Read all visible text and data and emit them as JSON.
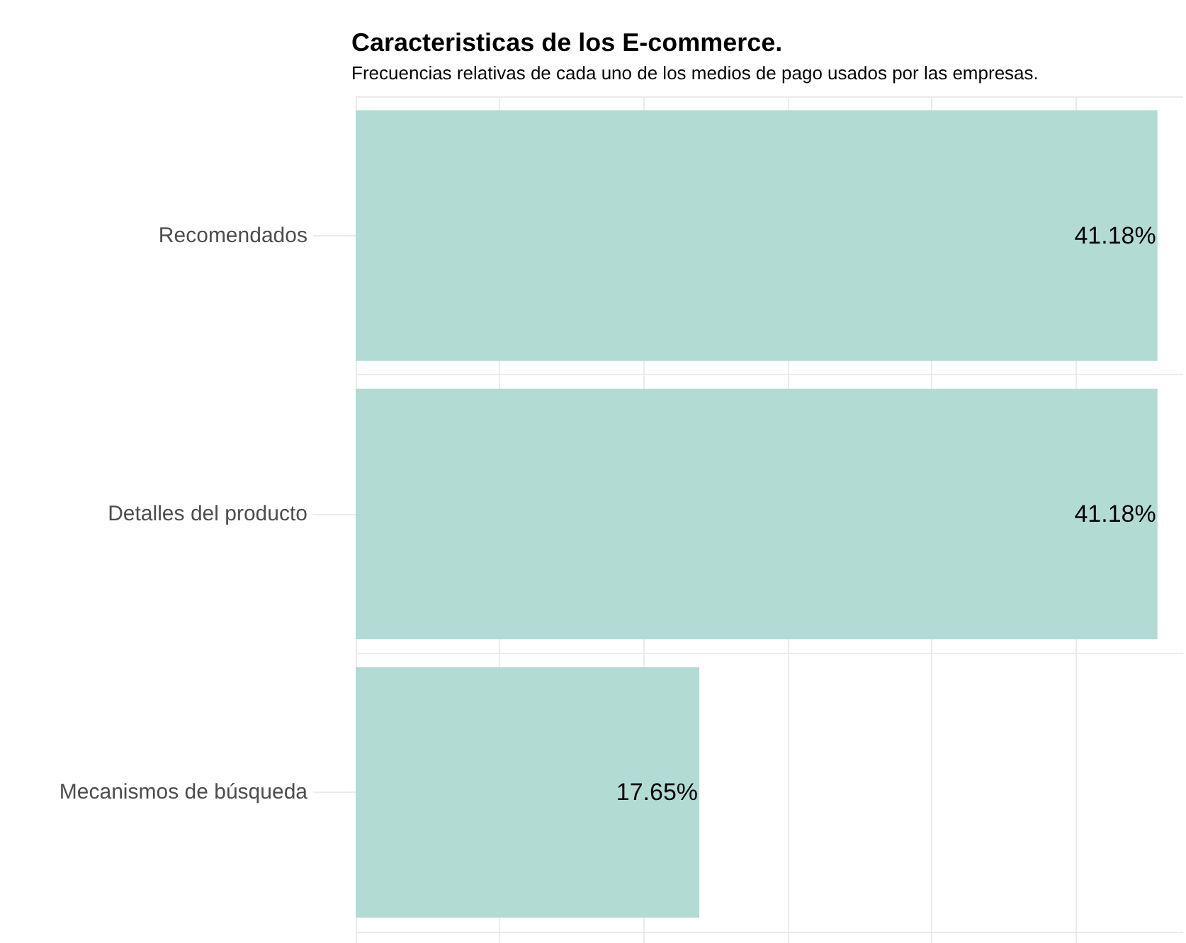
{
  "chart_data": {
    "type": "bar",
    "orientation": "horizontal",
    "title": "Caracteristicas de los E-commerce.",
    "subtitle": "Frecuencias relativas de cada uno de los medios de pago usados por las empresas.",
    "categories": [
      "Recomendados",
      "Detalles del producto",
      "Mecanismos de búsqueda"
    ],
    "values": [
      41.18,
      41.18,
      17.65
    ],
    "value_labels": [
      "41.18%",
      "41.18%",
      "17.65%"
    ],
    "color": "#b2dbd4",
    "xlim": [
      0,
      42.5
    ],
    "xticks": [
      {
        "value": 0,
        "label": null
      },
      {
        "value": 7.4,
        "label": null
      },
      {
        "value": 14.8,
        "label": null
      },
      {
        "value": 22.2,
        "label": null
      },
      {
        "value": 29.6,
        "label": null
      },
      {
        "value": 37,
        "label": null
      }
    ],
    "grid": true,
    "tick_labels": "y"
  }
}
